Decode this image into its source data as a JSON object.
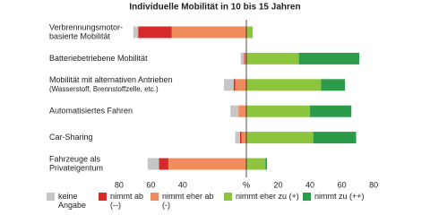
{
  "chart_data": {
    "type": "diverging-bar",
    "title": "Individuelle Mobilität in 10 bis 15 Jahren",
    "categories": [
      [
        "Verbrennungsmotor-",
        "basierte Mobilität"
      ],
      [
        "Batteriebetriebene Mobilität"
      ],
      [
        "Mobilität mit alternativen Antrieben",
        "(Wasserstoff, Brennstoffzelle, etc.)"
      ],
      [
        "Automatisiertes Fahren"
      ],
      [
        "Car-Sharing"
      ],
      [
        "Fahrzeuge als",
        "Privateigentum"
      ]
    ],
    "series": [
      {
        "name": "keine Angabe",
        "color": "#c6c6c6",
        "values": [
          -3,
          -2,
          -6,
          -5,
          -3,
          -7
        ]
      },
      {
        "name": "nimmt ab (--)",
        "color": "#d52b2b",
        "values": [
          -21,
          -0.5,
          -1,
          0,
          -1,
          -6
        ]
      },
      {
        "name": "nimmt eher ab (-)",
        "color": "#ef8c5c",
        "values": [
          -47,
          -1,
          -7,
          -5,
          -3,
          -49
        ]
      },
      {
        "name": "nimmt eher zu (+)",
        "color": "#8dc53e",
        "values": [
          4,
          33,
          47,
          40,
          42,
          12
        ]
      },
      {
        "name": "nimmt zu (++)",
        "color": "#2b9a49",
        "values": [
          0,
          38,
          15,
          26,
          27,
          1
        ]
      }
    ],
    "xlim": [
      -85,
      85
    ],
    "xticks": [
      {
        "value": -80,
        "label": "80"
      },
      {
        "value": -60,
        "label": "60"
      },
      {
        "value": -40,
        "label": "40"
      },
      {
        "value": 0,
        "label": "%"
      },
      20,
      40,
      60,
      80
    ]
  }
}
